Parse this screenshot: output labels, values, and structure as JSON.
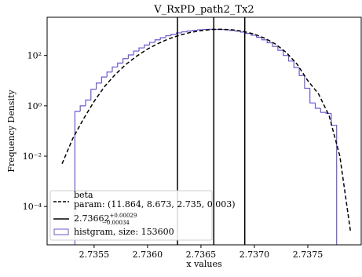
{
  "chart_data": {
    "type": "histogram",
    "title": "V_RxPD_path2_Tx2",
    "x_label": "x values",
    "y_label": "Frequency Density",
    "ylog": true,
    "xlim": [
      2.73506,
      2.738
    ],
    "ylim": [
      3e-06,
      3300
    ],
    "xticks": [
      2.7355,
      {
        "value": 2.736,
        "label": "2.7360"
      },
      2.7365,
      {
        "value": 2.737,
        "label": "2.7370"
      },
      2.7375
    ],
    "yticks": [
      {
        "value": 0.0001,
        "label": "10⁻⁴"
      },
      {
        "value": 0.01,
        "label": "10⁻²"
      },
      {
        "value": 1,
        "label": "10⁰"
      },
      {
        "value": 100,
        "label": "10²"
      }
    ],
    "legend": "lower left",
    "histogram": {
      "name": "histgram, size: 153600",
      "color": "#6a5acd",
      "bins": [
        2.73532,
        2.73537,
        2.73542,
        2.73547,
        2.73552,
        2.73557,
        2.73562,
        2.73567,
        2.73572,
        2.73577,
        2.73582,
        2.73587,
        2.73592,
        2.73597,
        2.73602,
        2.73607,
        2.73612,
        2.73617,
        2.73622,
        2.73627,
        2.73632,
        2.73637,
        2.73642,
        2.73647,
        2.73652,
        2.73657,
        2.73662,
        2.73667,
        2.73672,
        2.73677,
        2.73682,
        2.73687,
        2.73692,
        2.73697,
        2.73702,
        2.73707,
        2.73712,
        2.73717,
        2.73722,
        2.73727,
        2.73732,
        2.73737,
        2.73742,
        2.73747,
        2.73752,
        2.73757,
        2.73762,
        2.73767,
        2.73772,
        2.73777
      ],
      "values": [
        0.6,
        1.0,
        1.7,
        4.5,
        8,
        14,
        22,
        35,
        50,
        75,
        105,
        150,
        200,
        260,
        330,
        420,
        510,
        610,
        700,
        790,
        870,
        940,
        1000,
        1050,
        1080,
        1100,
        1090,
        1070,
        1040,
        990,
        930,
        850,
        750,
        640,
        530,
        420,
        320,
        230,
        160,
        100,
        60,
        33,
        16,
        5,
        1.3,
        0.8,
        0.55,
        0.5,
        0.17
      ]
    },
    "fit": {
      "name": "beta",
      "param": "param: (11.864, 8.673, 2.735, 0.003)",
      "color": "#000000",
      "x": [
        2.7352,
        2.7353,
        2.7354,
        2.7355,
        2.7356,
        2.7357,
        2.7358,
        2.7359,
        2.736,
        2.7361,
        2.7362,
        2.7363,
        2.7364,
        2.7365,
        2.7366,
        2.7367,
        2.7368,
        2.7369,
        2.737,
        2.7371,
        2.7372,
        2.7373,
        2.7374,
        2.7375,
        2.7376,
        2.7377,
        2.7378,
        2.7379
      ],
      "values": [
        0.005,
        0.05,
        0.3,
        1.5,
        6,
        18,
        45,
        95,
        180,
        300,
        460,
        640,
        820,
        970,
        1080,
        1100,
        1040,
        900,
        700,
        480,
        280,
        130,
        45,
        10,
        3,
        0.4,
        0.01,
        1e-05
      ]
    },
    "vlines": {
      "values": [
        2.73628,
        2.73662,
        2.73691
      ],
      "color": "#000000",
      "label": {
        "value": "2.73662",
        "upper": "+0.00029",
        "lower": "−0.00034"
      }
    }
  }
}
